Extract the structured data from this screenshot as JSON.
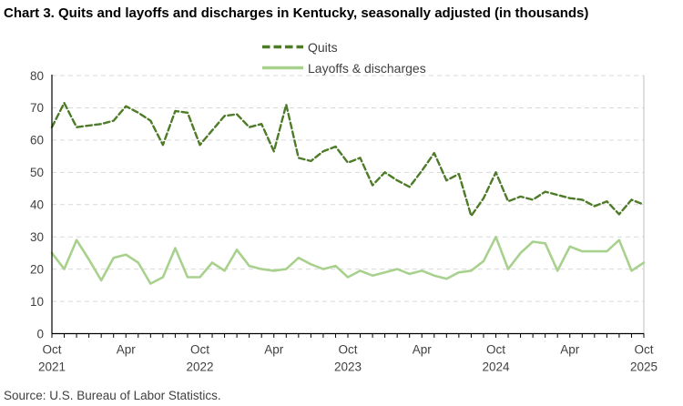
{
  "title": "Chart 3. Quits and layoffs and discharges in Kentucky, seasonally adjusted (in thousands)",
  "source": "Source: U.S. Bureau of Labor Statistics.",
  "colors": {
    "quits": "#4e7b28",
    "layoffs": "#a9d18e",
    "grid": "#d9d9d9",
    "axis": "#000000",
    "right_border": "#bfbfbf",
    "text": "#404040"
  },
  "chart_data": {
    "type": "line",
    "title": "Chart 3. Quits and layoffs and discharges in Kentucky, seasonally adjusted (in thousands)",
    "xlabel": "",
    "ylabel": "",
    "ylim": [
      0,
      80
    ],
    "yticks": [
      0,
      10,
      20,
      30,
      40,
      50,
      60,
      70,
      80
    ],
    "grid": true,
    "legend_position": "top-center",
    "x": [
      "Oct 2021",
      "Nov 2021",
      "Dec 2021",
      "Jan 2022",
      "Feb 2022",
      "Mar 2022",
      "Apr 2022",
      "May 2022",
      "Jun 2022",
      "Jul 2022",
      "Aug 2022",
      "Sep 2022",
      "Oct 2022",
      "Nov 2022",
      "Dec 2022",
      "Jan 2023",
      "Feb 2023",
      "Mar 2023",
      "Apr 2023",
      "May 2023",
      "Jun 2023",
      "Jul 2023",
      "Aug 2023",
      "Sep 2023",
      "Oct 2023",
      "Nov 2023",
      "Dec 2023",
      "Jan 2024",
      "Feb 2024",
      "Mar 2024",
      "Apr 2024",
      "May 2024",
      "Jun 2024",
      "Jul 2024",
      "Aug 2024",
      "Sep 2024",
      "Oct 2024",
      "Nov 2024",
      "Dec 2024",
      "Jan 2025",
      "Feb 2025",
      "Mar 2025",
      "Apr 2025",
      "May 2025",
      "Jun 2025",
      "Jul 2025",
      "Aug 2025",
      "Sep 2025",
      "Oct 2025"
    ],
    "xtick_labels": [
      {
        "index": 0,
        "month": "Oct",
        "year": "2021"
      },
      {
        "index": 6,
        "month": "Apr",
        "year": ""
      },
      {
        "index": 12,
        "month": "Oct",
        "year": "2022"
      },
      {
        "index": 18,
        "month": "Apr",
        "year": ""
      },
      {
        "index": 24,
        "month": "Oct",
        "year": "2023"
      },
      {
        "index": 30,
        "month": "Apr",
        "year": ""
      },
      {
        "index": 36,
        "month": "Oct",
        "year": "2024"
      },
      {
        "index": 42,
        "month": "Apr",
        "year": ""
      },
      {
        "index": 48,
        "month": "Oct",
        "year": "2025"
      }
    ],
    "series": [
      {
        "name": "Quits",
        "style": "dashed",
        "color": "#4e7b28",
        "values": [
          64,
          71.5,
          64,
          64.5,
          65,
          66,
          70.5,
          68.5,
          66,
          58.5,
          69,
          68.5,
          58.5,
          63,
          67.5,
          68,
          64,
          65,
          56.5,
          71,
          54.5,
          53.5,
          56.5,
          58,
          53,
          54.5,
          46,
          50,
          47.5,
          45.5,
          50.5,
          56,
          47.5,
          49.5,
          36.5,
          42,
          50,
          41,
          42.5,
          41.5,
          44,
          43,
          42,
          41.5,
          39.5,
          41,
          37,
          41.5,
          40
        ]
      },
      {
        "name": "Layoffs & discharges",
        "style": "solid",
        "color": "#a9d18e",
        "values": [
          25,
          20,
          29,
          23,
          16.5,
          23.5,
          24.5,
          22,
          15.5,
          17.5,
          26.5,
          17.5,
          17.5,
          22,
          19.5,
          26,
          21,
          20,
          19.5,
          20,
          23.5,
          21.5,
          20,
          21,
          17.5,
          19.5,
          18,
          19,
          20,
          18.5,
          19.5,
          18,
          17,
          19,
          19.5,
          22.5,
          30,
          20,
          25,
          28.5,
          28,
          19.5,
          27,
          25.5,
          25.5,
          25.5,
          29,
          19.5,
          22
        ]
      }
    ]
  }
}
